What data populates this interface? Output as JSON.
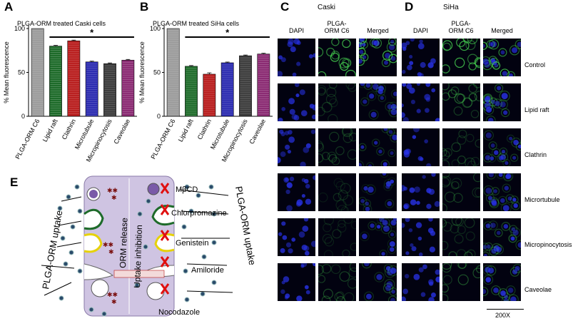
{
  "panels": {
    "A": {
      "letter": "A",
      "chart_data": {
        "type": "bar",
        "title": "PLGA-ORM treated Caski cells",
        "ylabel": "% Mean fluorescence",
        "ylim": [
          0,
          100
        ],
        "yticks": [
          "0",
          "50",
          "100"
        ],
        "categories": [
          "PLGA-ORM C6",
          "Lipid raft",
          "Clathrin",
          "Microtubule",
          "Micropinocytosis",
          "Caveolae"
        ],
        "values": [
          100,
          80,
          86,
          62,
          60,
          64
        ],
        "errors": [
          0,
          0.8,
          0.8,
          0.8,
          0.8,
          0.8
        ],
        "colors": [
          "#9a9a9a",
          "#1e6b2a",
          "#b81c1c",
          "#2a2ab0",
          "#3a3a3a",
          "#8a2a72"
        ],
        "significance": "*"
      }
    },
    "B": {
      "letter": "B",
      "chart_data": {
        "type": "bar",
        "title": "PLGA-ORM treated SiHa cells",
        "ylabel": "% Mean fluorescence",
        "ylim": [
          0,
          100
        ],
        "yticks": [
          "0",
          "50",
          "100"
        ],
        "categories": [
          "PLGA-ORM C6",
          "Lipid raft",
          "Clathrin",
          "Microtubule",
          "Micropinocytosis",
          "Caveolae"
        ],
        "values": [
          100,
          57,
          48,
          61,
          69,
          71
        ],
        "errors": [
          0,
          0.8,
          1.5,
          0.8,
          0.8,
          0.8
        ],
        "colors": [
          "#9a9a9a",
          "#1e6b2a",
          "#b81c1c",
          "#2a2ab0",
          "#3a3a3a",
          "#8a2a72"
        ],
        "significance": "*"
      }
    },
    "C": {
      "letter": "C",
      "cell_line": "Caski"
    },
    "D": {
      "letter": "D",
      "cell_line": "SiHa"
    },
    "micro_columns": [
      "DAPI",
      "PLGA-ORM C6",
      "Merged"
    ],
    "micro_rows": [
      "Control",
      "Lipid raft",
      "Clathrin",
      "Micrortubule",
      "Micropinocytosis",
      "Caveolae"
    ],
    "micro_green_intensity": {
      "caski": [
        0.9,
        0.25,
        0.3,
        0.2,
        0.2,
        0.35
      ],
      "siha": [
        0.85,
        0.45,
        0.3,
        0.3,
        0.35,
        0.4
      ]
    },
    "scale_bar": "200X",
    "E": {
      "letter": "E",
      "left_label": "PLGA-ORM uptake",
      "right_label": "PLGA-ORM uptake",
      "center_left": "ORM release",
      "center_right": "Uptake inhibition",
      "inhibitors": [
        "MβCD",
        "Chlorpromazine",
        "Genistein",
        "Amiloride",
        "Nocodazole"
      ]
    }
  }
}
